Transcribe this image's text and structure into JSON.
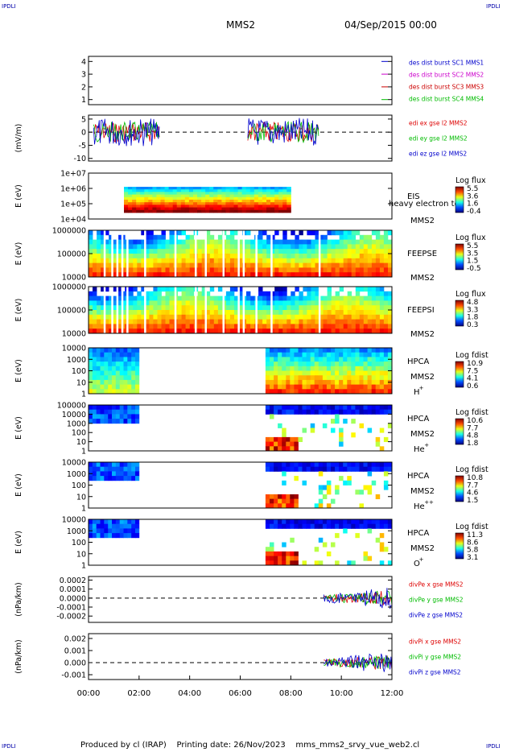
{
  "corner_label": "IPDLI",
  "header": {
    "spacecraft": "MMS2",
    "date": "04/Sep/2015 00:00"
  },
  "footer": {
    "producer": "Produced by cl (IRAP)",
    "printing": "Printing date: 26/Nov/2023",
    "file": "mms_mms2_srvy_vue_web2.cl"
  },
  "colors": {
    "mms1": "#0000cc",
    "mms2": "#cc00cc",
    "mms3": "#cc0000",
    "mms4": "#00bb00",
    "red": "#dd0000",
    "green": "#00bb00",
    "blue": "#0000cc"
  },
  "chart_data": {
    "type": "multi-panel time series",
    "x": {
      "ticks": [
        "00:00",
        "02:00",
        "04:00",
        "06:00",
        "08:00",
        "10:00",
        "12:00"
      ],
      "range_hours": [
        0,
        12
      ]
    },
    "panels": [
      {
        "id": "burst",
        "type": "line",
        "yticks": [
          "4",
          "3",
          "2",
          "1"
        ],
        "ylim": [
          0.6,
          4.4
        ],
        "legend": [
          {
            "text": "des dist burst SC1 MMS1",
            "color": "#0000cc",
            "marker_y": 4
          },
          {
            "text": "des dist burst SC2 MMS2",
            "color": "#cc00cc",
            "marker_y": 3
          },
          {
            "text": "des dist burst SC3 MMS3",
            "color": "#cc0000",
            "marker_y": 2
          },
          {
            "text": "des dist burst SC4 MMS4",
            "color": "#00bb00",
            "marker_y": 1
          }
        ]
      },
      {
        "id": "edi",
        "type": "line",
        "ylabel": "(mV/m)",
        "yticks": [
          "5",
          "0",
          "-5",
          "-10"
        ],
        "ylim": [
          -11,
          6.5
        ],
        "legend": [
          {
            "text": "edi ex gse l2 MMS2",
            "color": "#dd0000"
          },
          {
            "text": "edi ey gse l2 MMS2",
            "color": "#00bb00"
          },
          {
            "text": "edi ez gse l2 MMS2",
            "color": "#0000cc"
          }
        ],
        "intervals_hours": [
          [
            0.2,
            2.8
          ],
          [
            6.3,
            9.1
          ]
        ]
      },
      {
        "id": "eis",
        "type": "heatmap",
        "ylabel": "E (eV)",
        "yticks": [
          "1e+07",
          "1e+06",
          "1e+05",
          "1e+04"
        ],
        "label1": "EIS",
        "label2": "MMS2",
        "extra": "heavy electron to",
        "cb_title": "Log flux",
        "cb_ticks": [
          "5.5",
          "3.6",
          "1.6",
          "-0.4"
        ],
        "interval_hours": [
          1.4,
          8.0
        ]
      },
      {
        "id": "feepse",
        "type": "heatmap",
        "ylabel": "E (eV)",
        "yticks": [
          "1000000",
          "100000",
          "10000"
        ],
        "label1": "FEEPSE",
        "label2": "MMS2",
        "cb_title": "Log flux",
        "cb_ticks": [
          "5.5",
          "3.5",
          "1.5",
          "-0.5"
        ],
        "interval_hours": [
          0.0,
          12.0
        ]
      },
      {
        "id": "feepsi",
        "type": "heatmap",
        "ylabel": "E (eV)",
        "yticks": [
          "1000000",
          "100000",
          "10000"
        ],
        "label1": "FEEPSI",
        "label2": "MMS2",
        "cb_title": "Log flux",
        "cb_ticks": [
          "4.8",
          "3.3",
          "1.8",
          "0.3"
        ],
        "interval_hours": [
          0.0,
          12.0
        ]
      },
      {
        "id": "hpca_h",
        "type": "heatmap",
        "ylabel": "E (eV)",
        "yticks": [
          "10000",
          "1000",
          "100",
          "10",
          "1"
        ],
        "label1": "HPCA",
        "label2": "MMS2",
        "species": "H",
        "species_sup": "+",
        "cb_title": "Log fdist",
        "cb_ticks": [
          "10.9",
          "7.5",
          "4.1",
          "0.6"
        ],
        "intervals_hours": [
          [
            0.0,
            2.0
          ],
          [
            7.0,
            12.0
          ]
        ]
      },
      {
        "id": "hpca_he",
        "type": "heatmap",
        "ylabel": "E (eV)",
        "yticks": [
          "100000",
          "10000",
          "1000",
          "100",
          "10",
          "1"
        ],
        "label1": "HPCA",
        "label2": "MMS2",
        "species": "He",
        "species_sup": "+",
        "cb_title": "Log fdist",
        "cb_ticks": [
          "10.6",
          "7.7",
          "4.8",
          "1.8"
        ],
        "intervals_hours": [
          [
            0.0,
            2.0
          ],
          [
            7.0,
            12.0
          ]
        ]
      },
      {
        "id": "hpca_hepp",
        "type": "heatmap",
        "ylabel": "E (eV)",
        "yticks": [
          "10000",
          "1000",
          "100",
          "10",
          "1"
        ],
        "label1": "HPCA",
        "label2": "MMS2",
        "species": "He",
        "species_sup": "++",
        "cb_title": "Log fdist",
        "cb_ticks": [
          "10.8",
          "7.7",
          "4.6",
          "1.5"
        ],
        "intervals_hours": [
          [
            0.0,
            2.0
          ],
          [
            7.0,
            12.0
          ]
        ]
      },
      {
        "id": "hpca_o",
        "type": "heatmap",
        "ylabel": "E (eV)",
        "yticks": [
          "10000",
          "1000",
          "100",
          "10",
          "1"
        ],
        "label1": "HPCA",
        "label2": "MMS2",
        "species": "O",
        "species_sup": "+",
        "cb_title": "Log fdist",
        "cb_ticks": [
          "11.3",
          "8.6",
          "5.8",
          "3.1"
        ],
        "intervals_hours": [
          [
            0.0,
            2.0
          ],
          [
            7.0,
            12.0
          ]
        ]
      },
      {
        "id": "divpe",
        "type": "line",
        "ylabel": "(nPa/km)",
        "yticks": [
          "0.0002",
          "0.0001",
          "0.0000",
          "-0.0001",
          "-0.0002"
        ],
        "ylim": [
          -0.00027,
          0.00024
        ],
        "legend": [
          {
            "text": "divPe x gse MMS2",
            "color": "#dd0000"
          },
          {
            "text": "divPe y gse MMS2",
            "color": "#00bb00"
          },
          {
            "text": "divPe z gse MMS2",
            "color": "#0000cc"
          }
        ],
        "interval_hours": [
          9.3,
          12.0
        ]
      },
      {
        "id": "divpi",
        "type": "line",
        "ylabel": "(nPa/km)",
        "yticks": [
          "0.002",
          "0.001",
          "0.000",
          "-0.001"
        ],
        "ylim": [
          -0.0014,
          0.0024
        ],
        "legend": [
          {
            "text": "divPi x gse MMS2",
            "color": "#dd0000"
          },
          {
            "text": "divPi y gse MMS2",
            "color": "#00bb00"
          },
          {
            "text": "divPi z gse MMS2",
            "color": "#0000cc"
          }
        ],
        "interval_hours": [
          9.3,
          12.0
        ]
      }
    ]
  }
}
